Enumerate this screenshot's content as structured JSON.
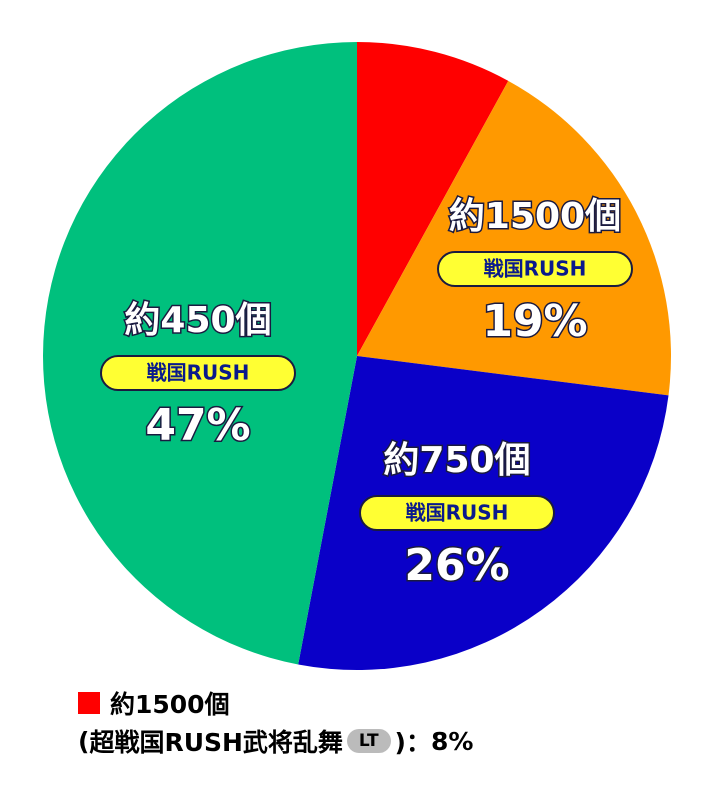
{
  "chart_data": {
    "type": "pie",
    "categories": [
      "約1500個",
      "約1500個",
      "約750個",
      "約450個"
    ],
    "tags": [
      "超戦国RUSH武将乱舞",
      "戦国RUSH",
      "戦国RUSH",
      "戦国RUSH"
    ],
    "values": [
      8,
      19,
      26,
      47
    ],
    "value_labels": [
      "8%",
      "19%",
      "26%",
      "47%"
    ],
    "colors": [
      "#ff0000",
      "#ff9900",
      "#0a00c8",
      "#00c07d"
    ],
    "legend": {
      "open": "(",
      "badge": "LT",
      "close": ")："
    }
  }
}
